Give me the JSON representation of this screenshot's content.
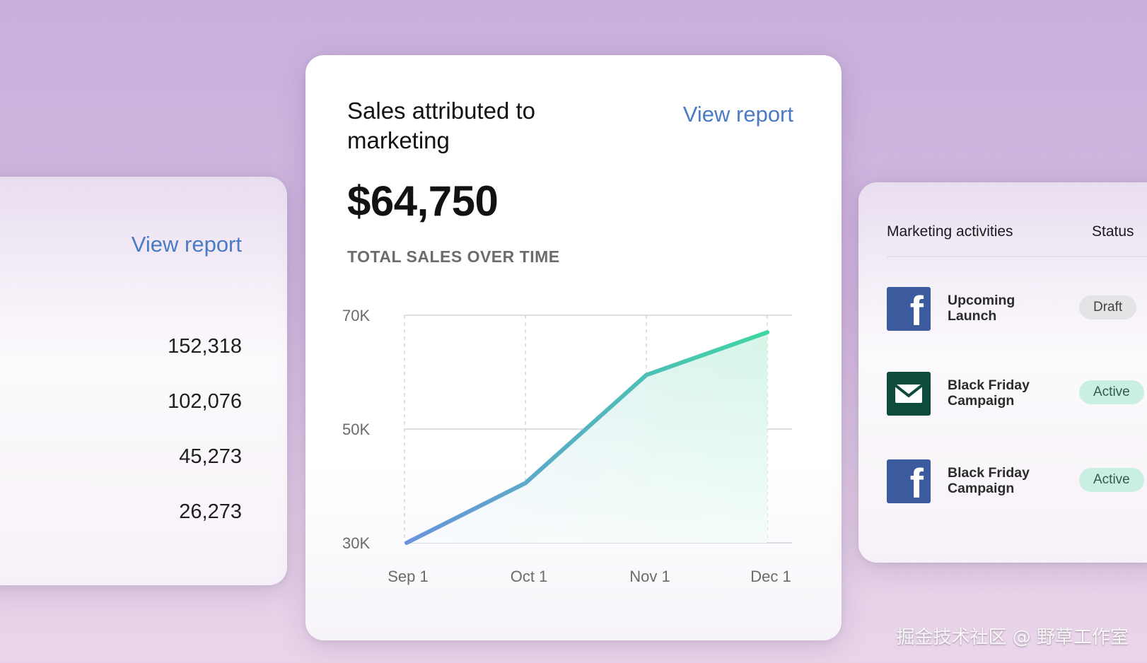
{
  "left_card": {
    "view_report": "View report",
    "values": [
      "152,318",
      "102,076",
      "45,273",
      "26,273"
    ]
  },
  "center_card": {
    "title": "Sales attributed to marketing",
    "view_report": "View report",
    "amount": "$64,750",
    "subtitle": "TOTAL SALES OVER TIME"
  },
  "chart_data": {
    "type": "area",
    "title": "TOTAL SALES OVER TIME",
    "categories": [
      "Sep 1",
      "Oct 1",
      "Nov 1",
      "Dec 1"
    ],
    "y_tick_labels": [
      "70K",
      "50K",
      "30K"
    ],
    "y_ticks": [
      70000,
      50000,
      30000
    ],
    "ylim": [
      30000,
      70000
    ],
    "x": [
      0,
      1,
      2,
      3
    ],
    "values": [
      30000,
      40500,
      59500,
      67000
    ],
    "grid": true,
    "line_gradient": [
      "#6b93dc",
      "#3fd6a3"
    ],
    "fill_gradient": [
      "#e6eefc",
      "#d2f5e6"
    ]
  },
  "right_card": {
    "col_activity": "Marketing activities",
    "col_status": "Status",
    "activities": [
      {
        "icon": "facebook-icon",
        "label": "Upcoming Launch",
        "status": "Draft",
        "status_kind": "draft"
      },
      {
        "icon": "email-icon",
        "label": "Black Friday Campaign",
        "status": "Active",
        "status_kind": "active"
      },
      {
        "icon": "facebook-icon",
        "label": "Black Friday Campaign",
        "status": "Active",
        "status_kind": "active"
      }
    ]
  },
  "watermark": "掘金技术社区 @ 野草工作室",
  "colors": {
    "link": "#4a7bc4",
    "facebook": "#3b5b9e",
    "email": "#0d4b3d"
  }
}
